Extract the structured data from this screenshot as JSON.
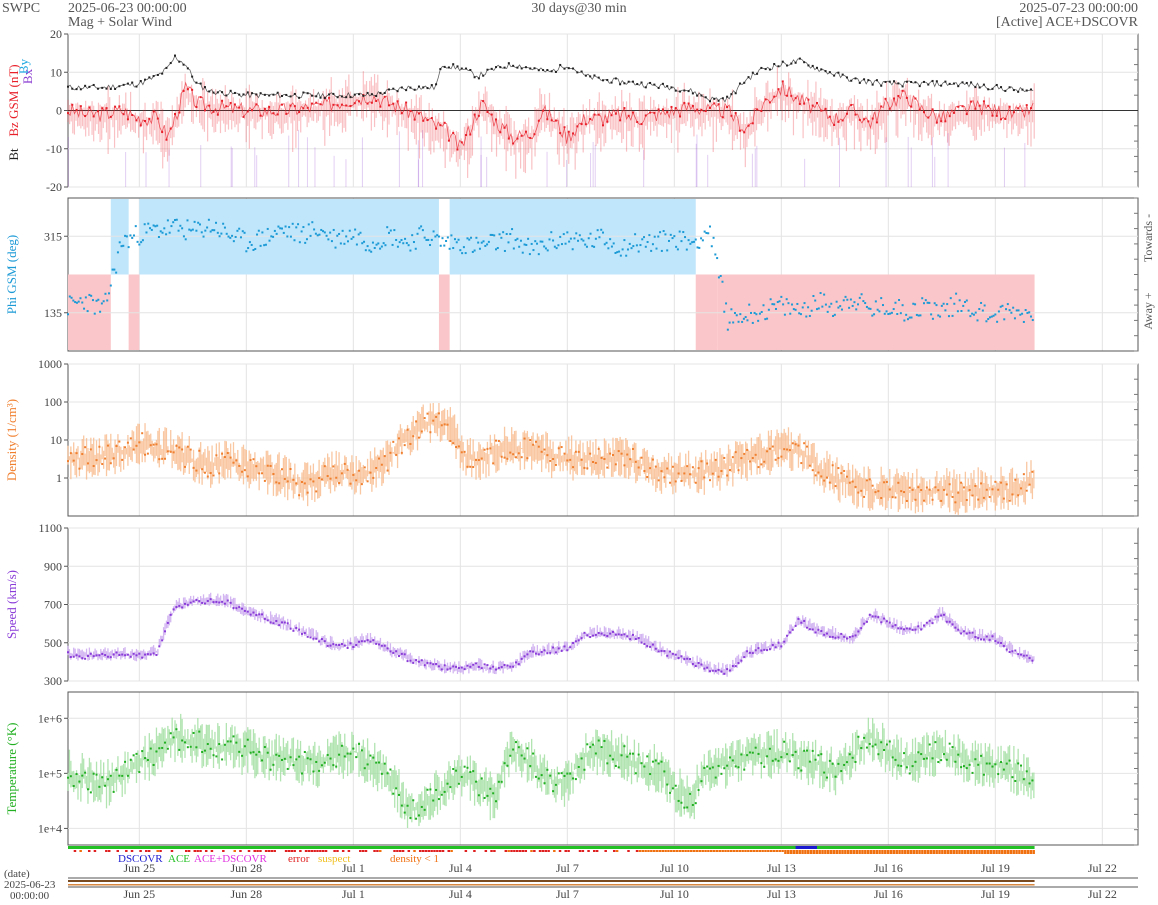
{
  "header": {
    "provider": "SWPC",
    "start_time": "2025-06-23 00:00:00",
    "subtitle": "Mag + Solar Wind",
    "span": "30 days@30 min",
    "end_time": "2025-07-23 00:00:00",
    "source": "[Active] ACE+DSCOVR"
  },
  "colors": {
    "bt": "#222222",
    "bz": "#e8202a",
    "by": "#20a8e0",
    "bx": "#8a3cd0",
    "phi_points": "#1c9ad6",
    "towards_band": "#bfe6fb",
    "away_band": "#fbc6c9",
    "density": "#f08030",
    "density_fill": "#f7b98a",
    "speed": "#8a3cd8",
    "speed_fill": "#c7a3ee",
    "temperature": "#22b022",
    "temperature_fill": "#9ddd9d",
    "grid": "#e4e4e4",
    "frame": "#555555"
  },
  "legend": {
    "dscovr": "DSCOVR",
    "ace": "ACE",
    "ace_dscovr": "ACE+DSCOVR",
    "error": "error",
    "suspect": "suspect",
    "density_lt1": "density < 1",
    "dscovr_color": "#1a1ad0",
    "ace_color": "#22c022",
    "ace_dscovr_color": "#e030e0",
    "error_color": "#e02020",
    "suspect_color": "#f0c020",
    "density_lt1_color": "#f07010"
  },
  "bottom_axis": {
    "label": "(date)",
    "start_date": "2025-06-23",
    "start_time": "00:00:00"
  },
  "chart_data": [
    {
      "type": "line",
      "panel": "mag",
      "ylabel_parts": [
        "Bt",
        "Bz GSM (nT)",
        "Bx",
        "By"
      ],
      "ylim": [
        -20,
        20
      ],
      "yticks": [
        "20",
        "10",
        "0",
        "-10",
        "-20"
      ],
      "x_range_days": [
        0,
        30
      ],
      "x_tick_labels": [
        "Jun 25",
        "Jun 28",
        "Jul 1",
        "Jul 4",
        "Jul 7",
        "Jul 10",
        "Jul 13",
        "Jul 16",
        "Jul 19",
        "Jul 22"
      ],
      "x_tick_days": [
        2,
        5,
        8,
        11,
        14,
        17,
        20,
        23,
        26,
        29
      ],
      "data_end_day": 27.1,
      "series": [
        {
          "name": "Bt",
          "key": "bt",
          "x": [
            0,
            1,
            2,
            2.5,
            2.8,
            3.0,
            3.3,
            3.6,
            4,
            5,
            6,
            7,
            8,
            8.5,
            9,
            9.5,
            10,
            10.3,
            10.5,
            11,
            11.5,
            12,
            12.5,
            13,
            13.5,
            14,
            14.5,
            15,
            16,
            17,
            17.5,
            18,
            18.5,
            19,
            19.5,
            20,
            20.5,
            21,
            22,
            23,
            24,
            25,
            26,
            27,
            27.1
          ],
          "values": [
            6,
            6,
            7,
            9,
            11,
            14,
            12,
            7,
            5,
            4,
            4,
            4,
            4,
            4,
            5,
            6,
            6,
            6,
            12,
            11,
            9,
            11,
            12,
            11,
            10,
            12,
            9,
            8,
            7,
            6,
            5,
            3,
            3,
            8,
            11,
            12,
            13,
            11,
            8,
            7,
            7,
            7,
            6,
            5,
            5
          ]
        },
        {
          "name": "Bz",
          "key": "bz",
          "x": [
            0,
            0.5,
            1,
            1.5,
            2,
            2.5,
            2.8,
            3.0,
            3.3,
            3.6,
            4,
            5,
            6,
            7,
            7.5,
            8,
            8.5,
            9,
            9.5,
            10,
            10.3,
            10.6,
            11,
            11.3,
            11.6,
            12,
            12.5,
            13,
            13.3,
            13.6,
            14,
            14.5,
            15,
            15.5,
            16,
            17,
            17.5,
            18,
            18.5,
            18.8,
            19,
            19.5,
            20,
            20.5,
            21,
            21.5,
            22,
            22.5,
            23,
            23.5,
            24,
            24.5,
            25,
            25.5,
            26,
            26.5,
            27,
            27.1
          ],
          "values": [
            0,
            -1,
            -1,
            0,
            -2,
            -2,
            -7,
            -2,
            6,
            2,
            1,
            0,
            0,
            1,
            2,
            3,
            4,
            2,
            0,
            -2,
            -4,
            -5,
            -10,
            -4,
            2,
            -3,
            -7,
            -6,
            0,
            -2,
            -7,
            -2,
            -2,
            -1,
            -2,
            0,
            1,
            0,
            0,
            -3,
            -5,
            2,
            6,
            3,
            0,
            -2,
            0,
            -3,
            2,
            4,
            0,
            -2,
            0,
            1,
            0,
            -1,
            0,
            1
          ]
        }
      ]
    },
    {
      "type": "scatter",
      "panel": "phi",
      "ylabel": "Phi GSM (deg)",
      "ylim": [
        45,
        405
      ],
      "yticks": [
        "315",
        "135"
      ],
      "right_labels": [
        "Towards -",
        "Away +"
      ],
      "sectors": [
        {
          "start": 0,
          "end": 1.2,
          "sector": "away"
        },
        {
          "start": 1.2,
          "end": 1.7,
          "sector": "towards"
        },
        {
          "start": 1.7,
          "end": 2.0,
          "sector": "away"
        },
        {
          "start": 2.0,
          "end": 10.4,
          "sector": "towards"
        },
        {
          "start": 10.4,
          "end": 10.7,
          "sector": "away"
        },
        {
          "start": 10.7,
          "end": 17.6,
          "sector": "towards"
        },
        {
          "start": 17.6,
          "end": 18.2,
          "sector": "away"
        },
        {
          "start": 18.2,
          "end": 27.1,
          "sector": "away"
        }
      ],
      "series": [
        {
          "name": "Phi",
          "x": [
            0,
            0.5,
            1,
            1.5,
            2,
            2.5,
            3,
            3.5,
            4,
            4.5,
            5,
            5.5,
            6,
            6.5,
            7,
            7.5,
            8,
            8.5,
            9,
            9.5,
            10,
            10.5,
            11,
            11.5,
            12,
            12.5,
            13,
            13.5,
            14,
            14.5,
            15,
            15.5,
            16,
            16.5,
            17,
            17.5,
            18,
            18.5,
            19,
            19.5,
            20,
            20.5,
            21,
            21.5,
            22,
            22.5,
            23,
            23.5,
            24,
            24.5,
            25,
            25.5,
            26,
            26.5,
            27
          ],
          "values": [
            150,
            165,
            140,
            300,
            320,
            330,
            335,
            325,
            340,
            320,
            300,
            310,
            330,
            320,
            330,
            310,
            320,
            300,
            320,
            300,
            320,
            300,
            300,
            290,
            300,
            310,
            280,
            300,
            310,
            300,
            310,
            290,
            300,
            300,
            310,
            300,
            330,
            120,
            130,
            140,
            150,
            140,
            160,
            150,
            170,
            140,
            150,
            140,
            150,
            140,
            160,
            140,
            130,
            140,
            130
          ]
        }
      ]
    },
    {
      "type": "line",
      "panel": "density",
      "ylabel": "Density (1/cm³)",
      "log": true,
      "ylim": [
        0.1,
        1000
      ],
      "yticks": [
        "1000",
        "100",
        "10",
        "1"
      ],
      "series": [
        {
          "name": "Density",
          "x": [
            0,
            1,
            1.5,
            2,
            2.5,
            3,
            3.5,
            4,
            4.5,
            5,
            5.5,
            6,
            6.5,
            7,
            7.5,
            8,
            8.5,
            9,
            9.5,
            10,
            10.5,
            11,
            11.5,
            12,
            12.5,
            13,
            13.5,
            14,
            14.5,
            15,
            15.5,
            16,
            16.5,
            17,
            17.5,
            18,
            18.5,
            19,
            19.5,
            20,
            20.5,
            21,
            21.5,
            22,
            22.5,
            23,
            23.5,
            24,
            24.5,
            25,
            25.5,
            26,
            26.5,
            27
          ],
          "values": [
            3,
            4,
            5,
            8,
            6,
            5,
            3,
            2,
            2.5,
            2,
            1.5,
            1.2,
            0.6,
            0.8,
            1.5,
            1.2,
            1.5,
            3,
            10,
            25,
            30,
            4,
            3,
            5,
            7,
            5,
            4,
            3.5,
            3,
            3,
            4,
            2.5,
            1.5,
            1.4,
            1.3,
            1.5,
            2,
            3,
            4,
            6,
            5,
            2,
            1,
            0.6,
            0.5,
            0.5,
            0.5,
            0.4,
            0.5,
            0.4,
            0.5,
            0.5,
            0.5,
            0.8
          ]
        }
      ]
    },
    {
      "type": "line",
      "panel": "speed",
      "ylabel": "Speed (km/s)",
      "ylim": [
        300,
        1100
      ],
      "yticks": [
        "1100",
        "900",
        "700",
        "500",
        "300"
      ],
      "series": [
        {
          "name": "Speed",
          "x": [
            0,
            0.5,
            1,
            1.5,
            2,
            2.5,
            2.8,
            3,
            3.5,
            4,
            4.5,
            5,
            5.5,
            6,
            6.5,
            7,
            7.5,
            8,
            8.5,
            9,
            9.5,
            10,
            10.5,
            11,
            11.5,
            12,
            12.5,
            13,
            13.5,
            14,
            14.5,
            15,
            15.5,
            16,
            16.5,
            17,
            17.5,
            18,
            18.5,
            19,
            19.5,
            20,
            20.5,
            21,
            21.5,
            22,
            22.5,
            23,
            23.5,
            24,
            24.5,
            25,
            25.5,
            26,
            26.5,
            27
          ],
          "values": [
            440,
            430,
            430,
            440,
            430,
            450,
            600,
            680,
            720,
            720,
            710,
            660,
            630,
            600,
            560,
            520,
            480,
            490,
            520,
            460,
            420,
            390,
            370,
            360,
            380,
            360,
            380,
            450,
            460,
            470,
            540,
            550,
            540,
            520,
            470,
            430,
            400,
            360,
            350,
            440,
            470,
            490,
            620,
            560,
            540,
            520,
            650,
            600,
            560,
            580,
            650,
            560,
            530,
            520,
            450,
            410
          ]
        }
      ]
    },
    {
      "type": "line",
      "panel": "temperature",
      "ylabel": "Temperature (°K)",
      "log": true,
      "ylim": [
        5000,
        3000000
      ],
      "yticks": [
        "1e+6",
        "1e+5",
        "1e+4"
      ],
      "series": [
        {
          "name": "Temperature",
          "x": [
            0,
            0.5,
            1,
            1.5,
            2,
            2.5,
            3,
            3.5,
            4,
            4.5,
            5,
            5.5,
            6,
            6.5,
            7,
            7.5,
            8,
            8.5,
            9,
            9.5,
            10,
            10.5,
            11,
            11.5,
            12,
            12.5,
            13,
            13.5,
            14,
            14.5,
            15,
            15.5,
            16,
            16.5,
            17,
            17.5,
            18,
            18.5,
            19,
            19.5,
            20,
            20.5,
            21,
            21.5,
            22,
            22.5,
            23,
            23.5,
            24,
            24.5,
            25,
            25.5,
            26,
            26.5,
            27
          ],
          "values": [
            100000,
            80000,
            60000,
            90000,
            150000,
            250000,
            450000,
            400000,
            300000,
            300000,
            250000,
            200000,
            180000,
            160000,
            140000,
            200000,
            250000,
            150000,
            80000,
            20000,
            30000,
            50000,
            100000,
            60000,
            30000,
            250000,
            150000,
            80000,
            60000,
            200000,
            250000,
            200000,
            150000,
            120000,
            50000,
            30000,
            120000,
            150000,
            200000,
            200000,
            250000,
            180000,
            150000,
            100000,
            200000,
            450000,
            250000,
            150000,
            200000,
            250000,
            200000,
            150000,
            150000,
            120000,
            60000
          ]
        }
      ]
    }
  ]
}
